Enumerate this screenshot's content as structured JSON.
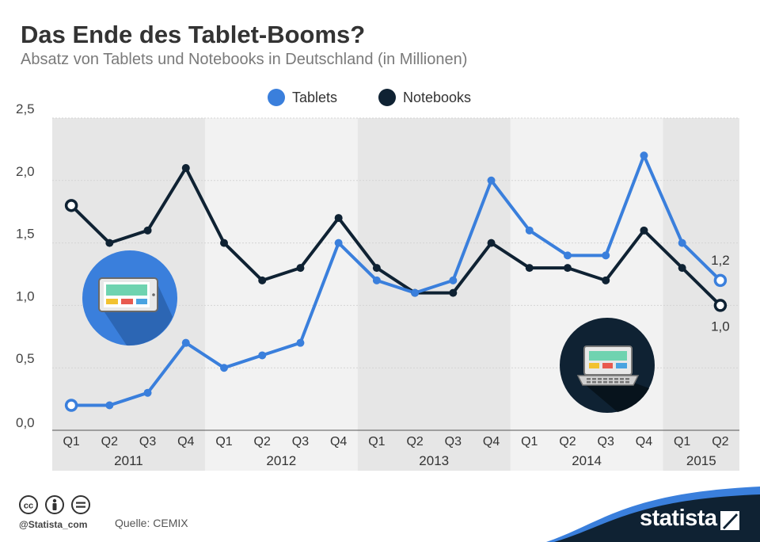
{
  "header": {
    "title": "Das Ende des Tablet-Booms?",
    "subtitle": "Absatz von Tablets und Notebooks in Deutschland (in Millionen)"
  },
  "footer": {
    "handle": "@Statista_com",
    "source": "Quelle: CEMIX",
    "brand": "statista",
    "icons": [
      "cc-icon",
      "by-icon",
      "nd-icon",
      "statista-logo-icon"
    ]
  },
  "colors": {
    "tablets": "#3a7fdc",
    "notebooks": "#0f2233",
    "band": "#e6e6e6",
    "plot_bg": "#f2f2f2",
    "brand": "#0f2233"
  },
  "chart_data": {
    "type": "line",
    "title": "Das Ende des Tablet-Booms?",
    "subtitle": "Absatz von Tablets und Notebooks in Deutschland (in Millionen)",
    "categories": [
      "Q1",
      "Q2",
      "Q3",
      "Q4",
      "Q1",
      "Q2",
      "Q3",
      "Q4",
      "Q1",
      "Q2",
      "Q3",
      "Q4",
      "Q1",
      "Q2",
      "Q3",
      "Q4",
      "Q1",
      "Q2"
    ],
    "year_groups": [
      {
        "label": "2011",
        "count": 4
      },
      {
        "label": "2012",
        "count": 4
      },
      {
        "label": "2013",
        "count": 4
      },
      {
        "label": "2014",
        "count": 4
      },
      {
        "label": "2015",
        "count": 2
      }
    ],
    "series": [
      {
        "name": "Tablets",
        "color": "#3a7fdc",
        "values": [
          0.2,
          0.2,
          0.3,
          0.7,
          0.5,
          0.6,
          0.7,
          1.5,
          1.2,
          1.1,
          1.2,
          2.0,
          1.6,
          1.4,
          1.4,
          2.2,
          1.5,
          1.2
        ]
      },
      {
        "name": "Notebooks",
        "color": "#0f2233",
        "values": [
          1.8,
          1.5,
          1.6,
          2.1,
          1.5,
          1.2,
          1.3,
          1.7,
          1.3,
          1.1,
          1.1,
          1.5,
          1.3,
          1.3,
          1.2,
          1.6,
          1.3,
          1.0
        ]
      }
    ],
    "end_labels": [
      {
        "series": "Tablets",
        "text": "1,2",
        "position": "above"
      },
      {
        "series": "Notebooks",
        "text": "1,0",
        "position": "below"
      }
    ],
    "ylim": [
      0,
      2.5
    ],
    "yticks": [
      0,
      0.5,
      1.0,
      1.5,
      2.0,
      2.5
    ],
    "ytick_labels": [
      "0,0",
      "0,5",
      "1,0",
      "1,5",
      "2,0",
      "2,5"
    ],
    "legend": {
      "position": "top-center",
      "entries": [
        "Tablets",
        "Notebooks"
      ]
    },
    "grid": true,
    "badges": [
      {
        "name": "tablet-icon",
        "near": "Tablets"
      },
      {
        "name": "laptop-icon",
        "near": "Notebooks"
      }
    ]
  }
}
